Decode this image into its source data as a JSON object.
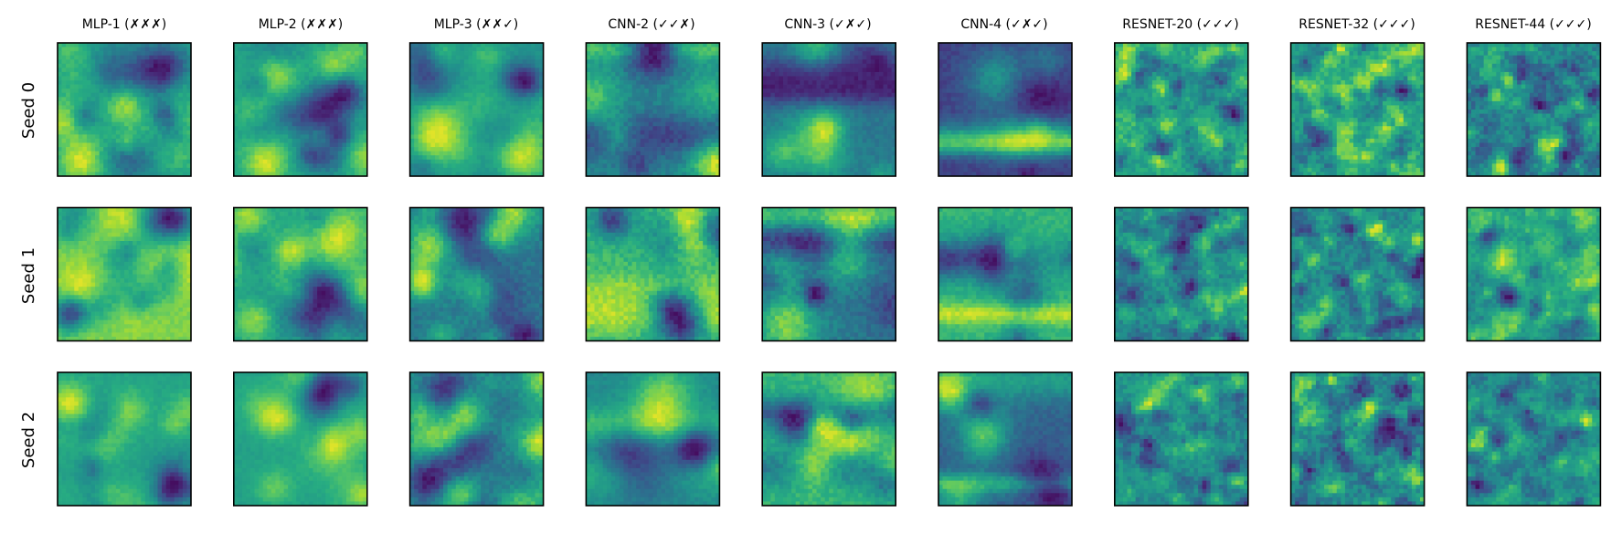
{
  "chart_data": {
    "type": "heatmap",
    "colormap": "viridis",
    "grid": false,
    "column_titles": [
      "MLP-1 (✗✗✗)",
      "MLP-2 (✗✗✗)",
      "MLP-3 (✗✗✓)",
      "CNN-2 (✓✓✗)",
      "CNN-3 (✓✗✓)",
      "CNN-4 (✓✗✓)",
      "RESNET-20 (✓✓✓)",
      "RESNET-32 (✓✓✓)",
      "RESNET-44 (✓✓✓)"
    ],
    "row_labels": [
      "Seed 0",
      "Seed 1",
      "Seed 2"
    ],
    "panels_per_row": 9,
    "panel_style_by_column": [
      "smooth-blobs",
      "smooth-blobs",
      "smooth-blobs",
      "object-smooth",
      "object-smooth",
      "object-smooth",
      "fine-texture",
      "fine-texture",
      "fine-texture"
    ]
  }
}
